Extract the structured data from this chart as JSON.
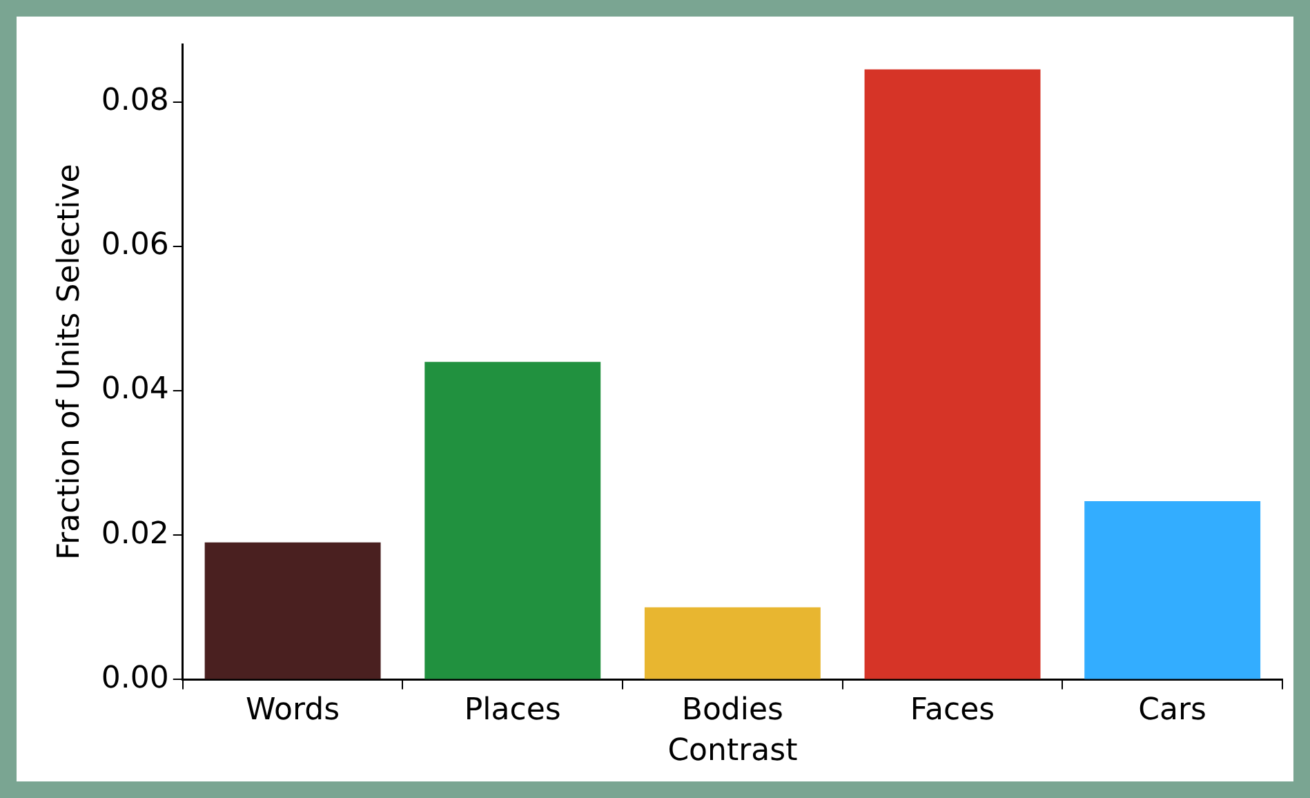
{
  "chart_data": {
    "type": "bar",
    "xlabel": "Contrast",
    "ylabel": "Fraction of Units Selective",
    "categories": [
      "Words",
      "Places",
      "Bodies",
      "Faces",
      "Cars"
    ],
    "values": [
      0.019,
      0.044,
      0.01,
      0.0845,
      0.0247
    ],
    "colors": [
      "#4a2020",
      "#21913f",
      "#e8b630",
      "#d63427",
      "#33adff"
    ],
    "ylim": [
      0,
      0.088
    ],
    "yticks": [
      {
        "value": 0,
        "label": "0.00"
      },
      0.02,
      0.04,
      0.06,
      0.08
    ],
    "grid": false,
    "legend": false
  }
}
